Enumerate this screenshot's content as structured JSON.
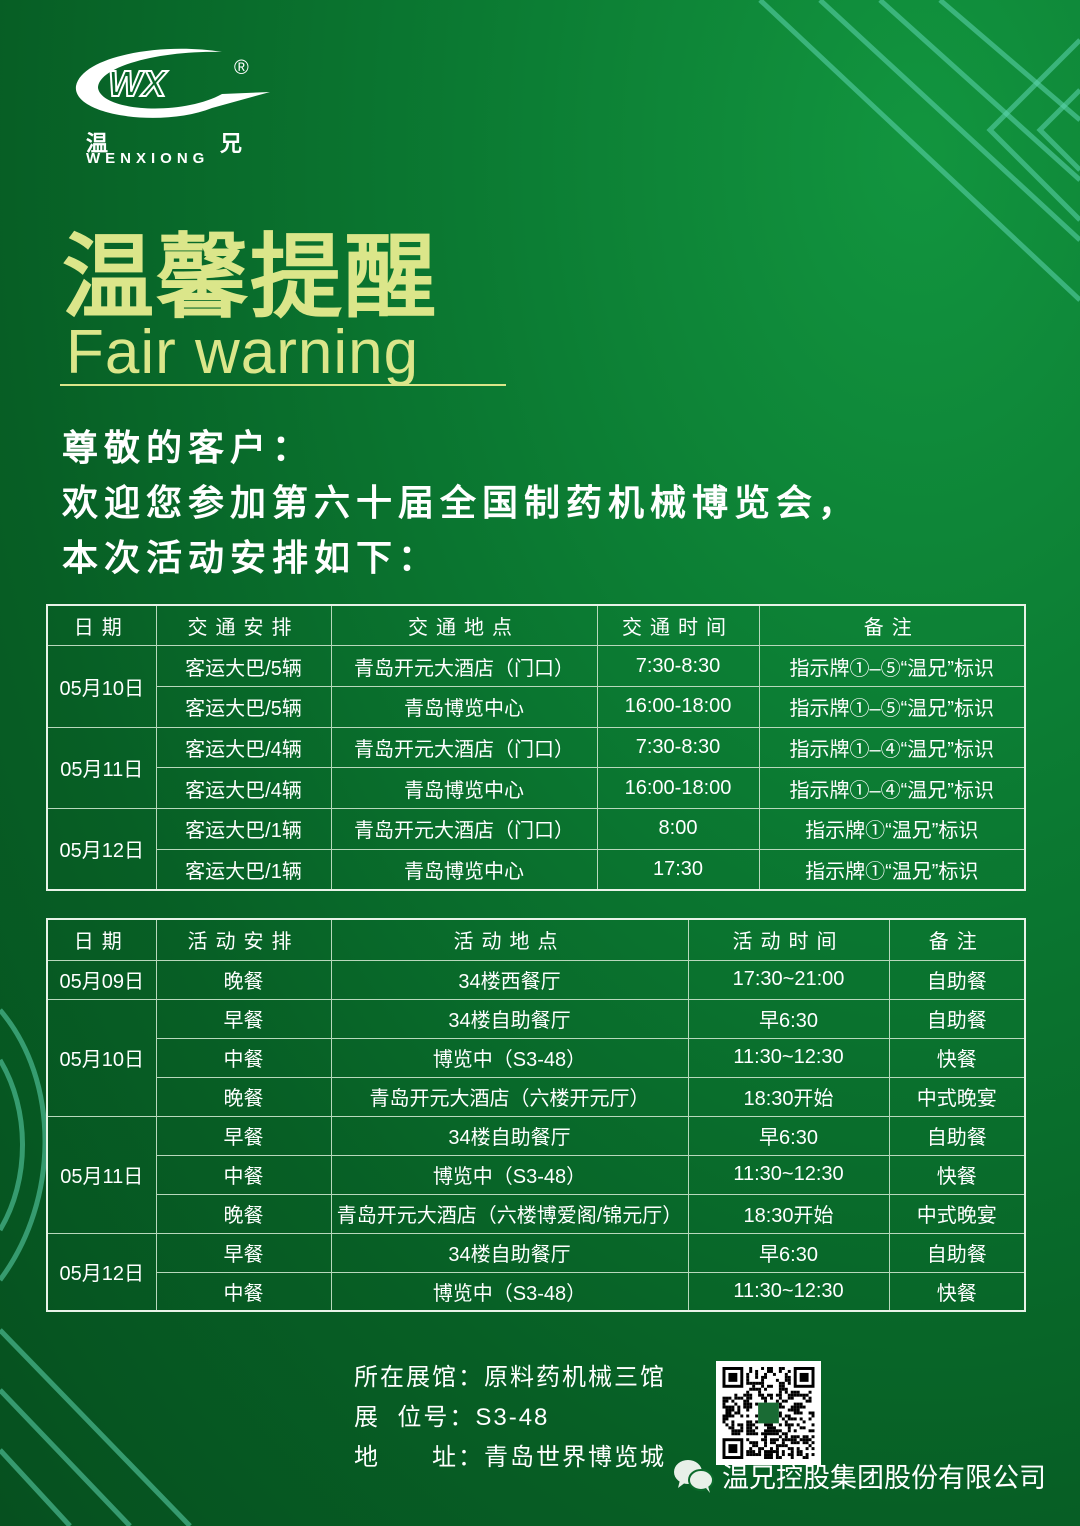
{
  "colors": {
    "background": "#0b7a32",
    "title": "#dbe68a",
    "text": "#ffffff"
  },
  "logo": {
    "mark": "WX",
    "registered": "®",
    "cn": [
      "温",
      "兄"
    ],
    "en": "WENXIONG"
  },
  "title": "温馨提醒",
  "subtitle": "Fair warning",
  "greeting": [
    "尊敬的客户：",
    "欢迎您参加第六十届全国制药机械博览会，",
    "本次活动安排如下："
  ],
  "transport": {
    "headers": [
      "日期",
      "交通安排",
      "交通地点",
      "交通时间",
      "备注"
    ],
    "groups": [
      {
        "date": "05月10日",
        "rows": [
          [
            "客运大巴/5辆",
            "青岛开元大酒店（门口）",
            "7:30-8:30",
            "指示牌①–⑤“温兄”标识"
          ],
          [
            "客运大巴/5辆",
            "青岛博览中心",
            "16:00-18:00",
            "指示牌①–⑤“温兄”标识"
          ]
        ]
      },
      {
        "date": "05月11日",
        "rows": [
          [
            "客运大巴/4辆",
            "青岛开元大酒店（门口）",
            "7:30-8:30",
            "指示牌①–④“温兄”标识"
          ],
          [
            "客运大巴/4辆",
            "青岛博览中心",
            "16:00-18:00",
            "指示牌①–④“温兄”标识"
          ]
        ]
      },
      {
        "date": "05月12日",
        "rows": [
          [
            "客运大巴/1辆",
            "青岛开元大酒店（门口）",
            "8:00",
            "指示牌①“温兄”标识"
          ],
          [
            "客运大巴/1辆",
            "青岛博览中心",
            "17:30",
            "指示牌①“温兄”标识"
          ]
        ]
      }
    ]
  },
  "activities": {
    "headers": [
      "日期",
      "活动安排",
      "活动地点",
      "活动时间",
      "备注"
    ],
    "groups": [
      {
        "date": "05月09日",
        "rows": [
          [
            "晚餐",
            "34楼西餐厅",
            "17:30~21:00",
            "自助餐"
          ]
        ]
      },
      {
        "date": "05月10日",
        "rows": [
          [
            "早餐",
            "34楼自助餐厅",
            "早6:30",
            "自助餐"
          ],
          [
            "中餐",
            "博览中（S3-48）",
            "11:30~12:30",
            "快餐"
          ],
          [
            "晚餐",
            "青岛开元大酒店（六楼开元厅）",
            "18:30开始",
            "中式晚宴"
          ]
        ]
      },
      {
        "date": "05月11日",
        "rows": [
          [
            "早餐",
            "34楼自助餐厅",
            "早6:30",
            "自助餐"
          ],
          [
            "中餐",
            "博览中（S3-48）",
            "11:30~12:30",
            "快餐"
          ],
          [
            "晚餐",
            "青岛开元大酒店（六楼博爱阁/锦元厅）",
            "18:30开始",
            "中式晚宴"
          ]
        ]
      },
      {
        "date": "05月12日",
        "rows": [
          [
            "早餐",
            "34楼自助餐厅",
            "早6:30",
            "自助餐"
          ],
          [
            "中餐",
            "博览中（S3-48）",
            "11:30~12:30",
            "快餐"
          ]
        ]
      }
    ]
  },
  "info": [
    {
      "label": "所在展馆：",
      "value": "原料药机械三馆"
    },
    {
      "label": "展  位号：",
      "value": "S3-48"
    },
    {
      "label": "地      址：",
      "value": "青岛世界博览城"
    }
  ],
  "company": "温兄控股集团股份有限公司",
  "icons": {
    "wechat": "wechat-icon",
    "qr": "qr-code"
  }
}
